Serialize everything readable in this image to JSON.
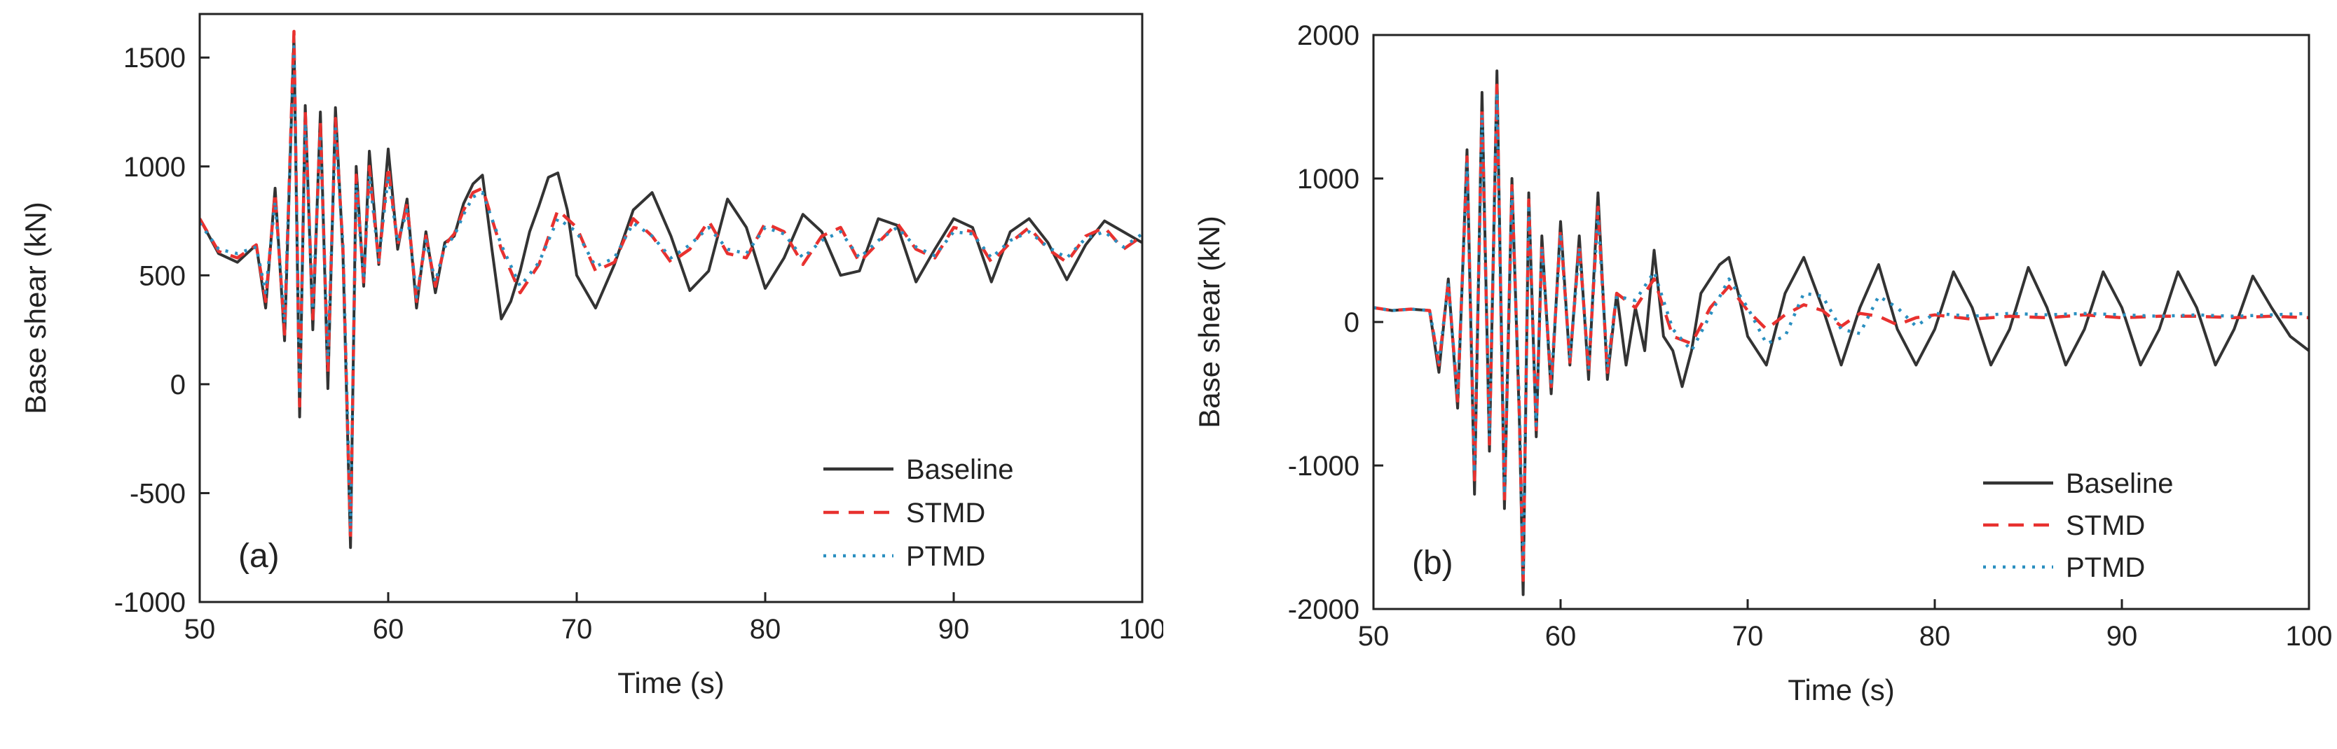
{
  "chart_data": [
    {
      "type": "line",
      "panel_label": "(a)",
      "xlabel": "Time (s)",
      "ylabel": "Base shear (kN)",
      "xlim": [
        50,
        100
      ],
      "ylim": [
        -1000,
        1700
      ],
      "xticks": [
        50,
        60,
        70,
        80,
        90,
        100
      ],
      "yticks": [
        -1000,
        -500,
        0,
        500,
        1000,
        1500
      ],
      "legend_position": "bottom-right",
      "series": [
        {
          "name": "Baseline",
          "color": "#333333",
          "style": "solid",
          "x": [
            50,
            51,
            52,
            53,
            53.5,
            54,
            54.5,
            55,
            55.3,
            55.6,
            56,
            56.4,
            56.8,
            57.2,
            57.6,
            58,
            58.3,
            58.7,
            59,
            59.5,
            60,
            60.5,
            61,
            61.5,
            62,
            62.5,
            63,
            63.5,
            64,
            64.5,
            65,
            65.5,
            66,
            66.5,
            67,
            67.5,
            68,
            68.5,
            69,
            69.5,
            70,
            71,
            72,
            73,
            74,
            75,
            76,
            77,
            78,
            79,
            80,
            81,
            82,
            83,
            84,
            85,
            86,
            87,
            88,
            89,
            90,
            91,
            92,
            93,
            94,
            95,
            96,
            97,
            98,
            99,
            100
          ],
          "y": [
            760,
            600,
            560,
            640,
            350,
            900,
            200,
            1600,
            -150,
            1280,
            250,
            1250,
            -20,
            1270,
            600,
            -750,
            1000,
            450,
            1070,
            550,
            1080,
            620,
            850,
            350,
            700,
            420,
            650,
            680,
            830,
            920,
            960,
            620,
            300,
            380,
            520,
            700,
            820,
            950,
            970,
            800,
            500,
            350,
            550,
            800,
            880,
            680,
            430,
            520,
            850,
            720,
            440,
            580,
            780,
            700,
            500,
            520,
            760,
            730,
            470,
            620,
            760,
            720,
            470,
            700,
            760,
            650,
            480,
            640,
            750,
            700,
            650
          ]
        },
        {
          "name": "STMD",
          "color": "#e8312f",
          "style": "dashed",
          "x": [
            50,
            51,
            52,
            53,
            53.5,
            54,
            54.5,
            55,
            55.3,
            55.6,
            56,
            56.4,
            56.8,
            57.2,
            57.6,
            58,
            58.3,
            58.7,
            59,
            59.5,
            60,
            60.5,
            61,
            61.5,
            62,
            62.5,
            63,
            63.5,
            64,
            64.5,
            65,
            66,
            67,
            68,
            69,
            70,
            71,
            72,
            73,
            74,
            75,
            76,
            77,
            78,
            79,
            80,
            81,
            82,
            83,
            84,
            85,
            86,
            87,
            88,
            89,
            90,
            91,
            92,
            93,
            94,
            95,
            96,
            97,
            98,
            99,
            100
          ],
          "y": [
            760,
            610,
            580,
            640,
            380,
            880,
            230,
            1620,
            -100,
            1250,
            300,
            1200,
            50,
            1220,
            620,
            -720,
            960,
            470,
            1000,
            560,
            1000,
            640,
            830,
            380,
            680,
            450,
            640,
            690,
            800,
            880,
            900,
            620,
            420,
            550,
            800,
            720,
            520,
            560,
            760,
            680,
            560,
            620,
            750,
            600,
            580,
            740,
            700,
            550,
            680,
            720,
            560,
            650,
            740,
            620,
            580,
            720,
            700,
            560,
            650,
            720,
            620,
            560,
            680,
            720,
            620,
            680
          ]
        },
        {
          "name": "PTMD",
          "color": "#2a8fc0",
          "style": "dotted",
          "x": [
            50,
            51,
            52,
            53,
            53.5,
            54,
            54.5,
            55,
            55.3,
            55.6,
            56,
            56.4,
            56.8,
            57.2,
            57.6,
            58,
            58.3,
            58.7,
            59,
            59.5,
            60,
            60.5,
            61,
            61.5,
            62,
            62.5,
            63,
            63.5,
            64,
            64.5,
            65,
            66,
            67,
            68,
            69,
            70,
            71,
            72,
            73,
            74,
            75,
            76,
            77,
            78,
            79,
            80,
            81,
            82,
            83,
            84,
            85,
            86,
            87,
            88,
            89,
            90,
            91,
            92,
            93,
            94,
            95,
            96,
            97,
            98,
            99,
            100
          ],
          "y": [
            740,
            620,
            600,
            630,
            420,
            840,
            280,
            1550,
            -50,
            1200,
            340,
            1150,
            100,
            1180,
            640,
            -680,
            920,
            480,
            960,
            570,
            960,
            650,
            800,
            400,
            660,
            470,
            630,
            680,
            780,
            860,
            880,
            640,
            450,
            560,
            760,
            700,
            540,
            580,
            740,
            680,
            580,
            640,
            720,
            620,
            600,
            720,
            690,
            580,
            660,
            700,
            580,
            660,
            720,
            630,
            590,
            700,
            690,
            580,
            660,
            700,
            630,
            580,
            670,
            700,
            630,
            690
          ]
        }
      ]
    },
    {
      "type": "line",
      "panel_label": "(b)",
      "xlabel": "Time (s)",
      "ylabel": "Base shear (kN)",
      "xlim": [
        50,
        100
      ],
      "ylim": [
        -2000,
        2000
      ],
      "xticks": [
        50,
        60,
        70,
        80,
        90,
        100
      ],
      "yticks": [
        -2000,
        -1000,
        0,
        1000,
        2000
      ],
      "legend_position": "bottom-right",
      "series": [
        {
          "name": "Baseline",
          "color": "#333333",
          "style": "solid",
          "x": [
            50,
            51,
            52,
            53,
            53.5,
            54,
            54.5,
            55,
            55.4,
            55.8,
            56.2,
            56.6,
            57,
            57.4,
            57.8,
            58,
            58.3,
            58.7,
            59,
            59.5,
            60,
            60.5,
            61,
            61.5,
            62,
            62.5,
            63,
            63.5,
            64,
            64.5,
            65,
            65.5,
            66,
            66.5,
            67,
            67.5,
            68,
            68.5,
            69,
            69.5,
            70,
            71,
            72,
            73,
            74,
            75,
            76,
            77,
            78,
            79,
            80,
            81,
            82,
            83,
            84,
            85,
            86,
            87,
            88,
            89,
            90,
            91,
            92,
            93,
            94,
            95,
            96,
            97,
            98,
            99,
            100
          ],
          "y": [
            100,
            80,
            90,
            80,
            -350,
            300,
            -600,
            1200,
            -1200,
            1600,
            -900,
            1750,
            -1300,
            1000,
            -700,
            -1900,
            900,
            -800,
            600,
            -500,
            700,
            -300,
            600,
            -400,
            900,
            -400,
            200,
            -300,
            100,
            -200,
            500,
            -100,
            -200,
            -450,
            -200,
            200,
            300,
            400,
            450,
            200,
            -100,
            -300,
            200,
            450,
            100,
            -300,
            100,
            400,
            -50,
            -300,
            -50,
            350,
            100,
            -300,
            -50,
            380,
            100,
            -300,
            -50,
            350,
            100,
            -300,
            -50,
            350,
            100,
            -300,
            -50,
            320,
            100,
            -100,
            -200
          ]
        },
        {
          "name": "STMD",
          "color": "#e8312f",
          "style": "dashed",
          "x": [
            50,
            51,
            52,
            53,
            53.5,
            54,
            54.5,
            55,
            55.4,
            55.8,
            56.2,
            56.6,
            57,
            57.4,
            57.8,
            58,
            58.3,
            58.7,
            59,
            59.5,
            60,
            60.5,
            61,
            61.5,
            62,
            62.5,
            63,
            64,
            65,
            66,
            67,
            68,
            69,
            70,
            71,
            72,
            73,
            74,
            75,
            76,
            77,
            78,
            79,
            80,
            82,
            84,
            86,
            88,
            90,
            92,
            94,
            96,
            98,
            100
          ],
          "y": [
            100,
            80,
            90,
            80,
            -300,
            280,
            -550,
            1150,
            -1100,
            1500,
            -850,
            1650,
            -1250,
            950,
            -650,
            -1800,
            850,
            -750,
            550,
            -450,
            650,
            -280,
            550,
            -350,
            800,
            -350,
            200,
            100,
            300,
            -100,
            -150,
            100,
            250,
            80,
            -50,
            50,
            120,
            80,
            -30,
            60,
            40,
            -20,
            30,
            50,
            20,
            40,
            30,
            50,
            30,
            40,
            40,
            30,
            40,
            30
          ]
        },
        {
          "name": "PTMD",
          "color": "#2a8fc0",
          "style": "dotted",
          "x": [
            50,
            51,
            52,
            53,
            53.5,
            54,
            54.5,
            55,
            55.4,
            55.8,
            56.2,
            56.6,
            57,
            57.4,
            57.8,
            58,
            58.3,
            58.7,
            59,
            59.5,
            60,
            60.5,
            61,
            61.5,
            62,
            62.5,
            63,
            64,
            65,
            66,
            67,
            68,
            69,
            70,
            71,
            72,
            73,
            74,
            75,
            76,
            77,
            78,
            79,
            80,
            82,
            84,
            86,
            88,
            90,
            92,
            94,
            96,
            98,
            100
          ],
          "y": [
            100,
            80,
            90,
            80,
            -280,
            260,
            -520,
            1100,
            -1050,
            1450,
            -800,
            1600,
            -1200,
            900,
            -620,
            -1750,
            820,
            -720,
            520,
            -420,
            620,
            -260,
            520,
            -320,
            760,
            -320,
            180,
            150,
            350,
            -50,
            -200,
            50,
            300,
            100,
            -150,
            -100,
            200,
            180,
            -50,
            -80,
            180,
            100,
            -30,
            60,
            40,
            60,
            50,
            60,
            50,
            40,
            50,
            40,
            50,
            60
          ]
        }
      ]
    }
  ]
}
